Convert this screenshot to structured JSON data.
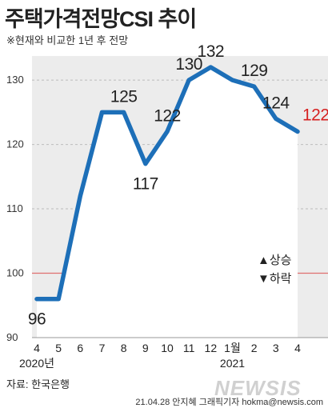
{
  "header": {
    "title": "주택가격전망CSI 추이",
    "subtitle": "※현재와 비교한 1년 후 전망"
  },
  "footer": {
    "source": "자료: 한국은행",
    "credit": "21.04.28 안지혜 그래픽기자  hokma@newsis.com",
    "watermark": "NEWSIS"
  },
  "legend": {
    "up": "▲상승",
    "down": "▼하락"
  },
  "colors": {
    "line": "#1d6fb8",
    "last_label": "#d62020",
    "baseline": "#e07070",
    "grid": "#bdbdbd"
  },
  "chart_data": {
    "type": "line",
    "title": "주택가격전망CSI 추이",
    "categories": [
      "4",
      "5",
      "6",
      "7",
      "8",
      "9",
      "10",
      "11",
      "12",
      "1월",
      "2",
      "3",
      "4"
    ],
    "year_labels": [
      {
        "text": "2020년",
        "category_index": 0
      },
      {
        "text": "2021",
        "category_index": 9
      }
    ],
    "series": [
      {
        "values": [
          96,
          96,
          112,
          125,
          125,
          117,
          122,
          130,
          132,
          130,
          129,
          124,
          122
        ]
      }
    ],
    "data_labels": [
      {
        "index": 0,
        "text": "96",
        "position": "below"
      },
      {
        "index": 4,
        "text": "125",
        "position": "above"
      },
      {
        "index": 5,
        "text": "117",
        "position": "below"
      },
      {
        "index": 6,
        "text": "122",
        "position": "above"
      },
      {
        "index": 7,
        "text": "130",
        "position": "above"
      },
      {
        "index": 8,
        "text": "132",
        "position": "above"
      },
      {
        "index": 10,
        "text": "129",
        "position": "above"
      },
      {
        "index": 11,
        "text": "124",
        "position": "above"
      },
      {
        "index": 12,
        "text": "122",
        "position": "right",
        "highlight": true
      }
    ],
    "yticks": [
      90,
      100,
      110,
      120,
      130
    ],
    "ylim": [
      90,
      135
    ],
    "baseline": 100,
    "grid": true
  }
}
